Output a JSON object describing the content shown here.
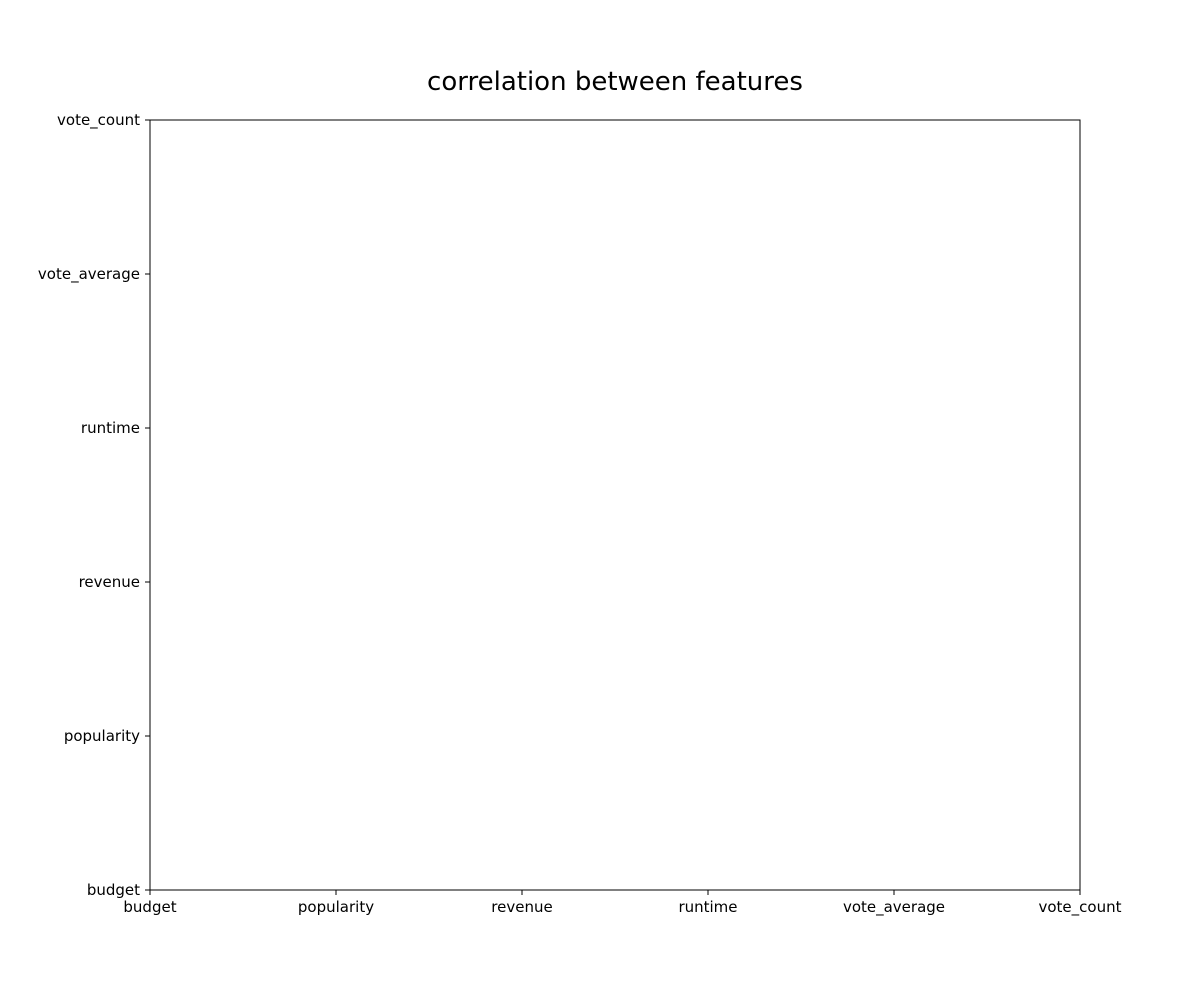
{
  "chart_data": {
    "type": "scatter",
    "title": "correlation between features",
    "xlabel": "",
    "ylabel": "",
    "x_categories": [
      "budget",
      "popularity",
      "revenue",
      "runtime",
      "vote_average",
      "vote_count"
    ],
    "y_categories": [
      "budget",
      "popularity",
      "revenue",
      "runtime",
      "vote_average",
      "vote_count"
    ],
    "grid": false,
    "legend": "none",
    "series": [
      {
        "values": []
      }
    ],
    "colors": {
      "axis": "#000000",
      "background": "#ffffff"
    }
  }
}
